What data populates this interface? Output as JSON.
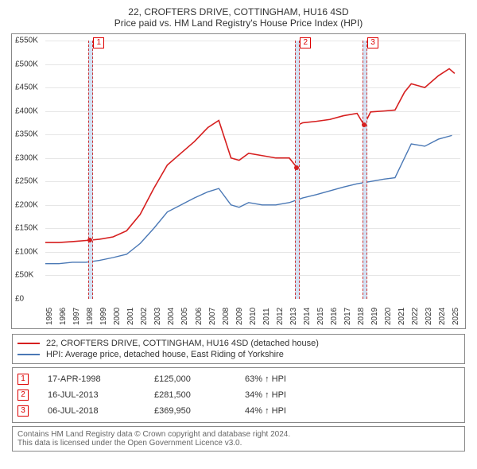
{
  "title": "22, CROFTERS DRIVE, COTTINGHAM, HU16 4SD",
  "subtitle": "Price paid vs. HM Land Registry's House Price Index (HPI)",
  "chart": {
    "type": "line",
    "background_color": "#ffffff",
    "grid_color": "#e6e6e6",
    "axis_color": "#888888",
    "ylim": [
      0,
      550
    ],
    "ytick_step": 50,
    "yticks": [
      "£0",
      "£50K",
      "£100K",
      "£150K",
      "£200K",
      "£250K",
      "£300K",
      "£350K",
      "£400K",
      "£450K",
      "£500K",
      "£550K"
    ],
    "x_years": [
      1995,
      1996,
      1997,
      1998,
      1999,
      2000,
      2001,
      2002,
      2003,
      2004,
      2005,
      2006,
      2007,
      2008,
      2009,
      2010,
      2011,
      2012,
      2013,
      2014,
      2015,
      2016,
      2017,
      2018,
      2019,
      2020,
      2021,
      2022,
      2023,
      2024,
      2025
    ],
    "xlim": [
      1995,
      2025.5
    ],
    "series": [
      {
        "name": "property",
        "label": "22, CROFTERS DRIVE, COTTINGHAM, HU16 4SD (detached house)",
        "color": "#d61f1f",
        "line_width": 1.6,
        "data": [
          [
            1995,
            120
          ],
          [
            1996,
            120
          ],
          [
            1997,
            122
          ],
          [
            1998.3,
            125
          ],
          [
            1999,
            127
          ],
          [
            2000,
            132
          ],
          [
            2001,
            145
          ],
          [
            2002,
            180
          ],
          [
            2003,
            235
          ],
          [
            2004,
            285
          ],
          [
            2005,
            310
          ],
          [
            2006,
            335
          ],
          [
            2007,
            365
          ],
          [
            2007.8,
            380
          ],
          [
            2008.7,
            300
          ],
          [
            2009.3,
            295
          ],
          [
            2010,
            310
          ],
          [
            2011,
            305
          ],
          [
            2012,
            300
          ],
          [
            2013,
            300
          ],
          [
            2013.55,
            280
          ],
          [
            2013.6,
            370
          ],
          [
            2014,
            375
          ],
          [
            2015,
            378
          ],
          [
            2016,
            382
          ],
          [
            2017,
            390
          ],
          [
            2018,
            395
          ],
          [
            2018.52,
            370
          ],
          [
            2019,
            398
          ],
          [
            2020,
            400
          ],
          [
            2020.8,
            402
          ],
          [
            2021.5,
            440
          ],
          [
            2022,
            458
          ],
          [
            2023,
            450
          ],
          [
            2024,
            475
          ],
          [
            2024.8,
            490
          ],
          [
            2025.2,
            480
          ]
        ]
      },
      {
        "name": "hpi",
        "label": "HPI: Average price, detached house, East Riding of Yorkshire",
        "color": "#4a78b5",
        "line_width": 1.4,
        "data": [
          [
            1995,
            75
          ],
          [
            1996,
            75
          ],
          [
            1997,
            78
          ],
          [
            1998,
            78
          ],
          [
            1999,
            82
          ],
          [
            2000,
            88
          ],
          [
            2001,
            95
          ],
          [
            2002,
            118
          ],
          [
            2003,
            150
          ],
          [
            2004,
            185
          ],
          [
            2005,
            200
          ],
          [
            2006,
            215
          ],
          [
            2007,
            228
          ],
          [
            2007.8,
            235
          ],
          [
            2008.7,
            200
          ],
          [
            2009.3,
            195
          ],
          [
            2010,
            205
          ],
          [
            2011,
            200
          ],
          [
            2012,
            200
          ],
          [
            2013,
            205
          ],
          [
            2014,
            215
          ],
          [
            2015,
            222
          ],
          [
            2016,
            230
          ],
          [
            2017,
            238
          ],
          [
            2018,
            245
          ],
          [
            2019,
            250
          ],
          [
            2020,
            255
          ],
          [
            2020.8,
            258
          ],
          [
            2021.5,
            300
          ],
          [
            2022,
            330
          ],
          [
            2023,
            325
          ],
          [
            2024,
            340
          ],
          [
            2025,
            348
          ]
        ]
      }
    ],
    "sale_markers": [
      {
        "n": 1,
        "x": 1998.3,
        "y": 125,
        "color": "#d61f1f"
      },
      {
        "n": 2,
        "x": 2013.55,
        "y": 280,
        "color": "#d61f1f"
      },
      {
        "n": 3,
        "x": 2018.52,
        "y": 370,
        "color": "#d61f1f"
      }
    ],
    "marker_radius": 3
  },
  "legend": {
    "items": [
      {
        "color": "#d61f1f",
        "label": "22, CROFTERS DRIVE, COTTINGHAM, HU16 4SD (detached house)"
      },
      {
        "color": "#4a78b5",
        "label": "HPI: Average price, detached house, East Riding of Yorkshire"
      }
    ]
  },
  "events": [
    {
      "n": "1",
      "date": "17-APR-1998",
      "price": "£125,000",
      "delta": "63% ↑ HPI"
    },
    {
      "n": "2",
      "date": "16-JUL-2013",
      "price": "£281,500",
      "delta": "34% ↑ HPI"
    },
    {
      "n": "3",
      "date": "06-JUL-2018",
      "price": "£369,950",
      "delta": "44% ↑ HPI"
    }
  ],
  "footer": {
    "line1": "Contains HM Land Registry data © Crown copyright and database right 2024.",
    "line2": "This data is licensed under the Open Government Licence v3.0."
  }
}
